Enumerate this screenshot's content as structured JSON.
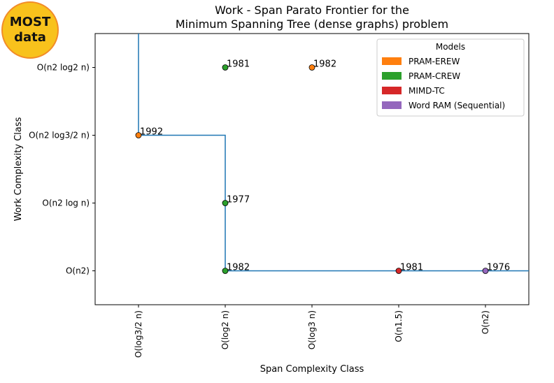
{
  "badge": {
    "line1": "MOST",
    "line2": "data",
    "fill": "#f8c21c",
    "border": "#f28c28"
  },
  "chart_data": {
    "type": "scatter",
    "title_line1": "Work - Span Parato Frontier for the",
    "title_line2": "Minimum Spanning Tree (dense graphs) problem",
    "xlabel": "Span Complexity Class",
    "ylabel": "Work Complexity Class",
    "x_categories": [
      "O(log3/2 n)",
      "O(log2 n)",
      "O(log3 n)",
      "O(n1.5)",
      "O(n2)"
    ],
    "y_categories": [
      "O(n2)",
      "O(n2 log n)",
      "O(n2 log3/2 n)",
      "O(n2 log2 n)"
    ],
    "legend": {
      "title": "Models",
      "position": "upper right",
      "entries": [
        {
          "label": "PRAM-EREW",
          "color": "#ff7f0e"
        },
        {
          "label": "PRAM-CREW",
          "color": "#2ca02c"
        },
        {
          "label": "MIMD-TC",
          "color": "#d62728"
        },
        {
          "label": "Word RAM (Sequential)",
          "color": "#9467bd"
        }
      ]
    },
    "points": [
      {
        "x": 1,
        "y": 3,
        "label": "1981",
        "model": "PRAM-CREW"
      },
      {
        "x": 2,
        "y": 3,
        "label": "1982",
        "model": "PRAM-EREW"
      },
      {
        "x": 0,
        "y": 2,
        "label": "1992",
        "model": "PRAM-EREW"
      },
      {
        "x": 1,
        "y": 1,
        "label": "1977",
        "model": "PRAM-CREW"
      },
      {
        "x": 1,
        "y": 0,
        "label": "1982",
        "model": "PRAM-CREW"
      },
      {
        "x": 3,
        "y": 0,
        "label": "1981",
        "model": "MIMD-TC"
      },
      {
        "x": 4,
        "y": 0,
        "label": "1976",
        "model": "Word RAM (Sequential)"
      }
    ],
    "frontier": {
      "color": "#1f77b4",
      "steps": [
        [
          0,
          3.5
        ],
        [
          0,
          2
        ],
        [
          1,
          2
        ],
        [
          1,
          0
        ],
        [
          4.5,
          0
        ]
      ]
    },
    "xlim": [
      -0.5,
      4.5
    ],
    "ylim": [
      -0.5,
      3.5
    ]
  }
}
